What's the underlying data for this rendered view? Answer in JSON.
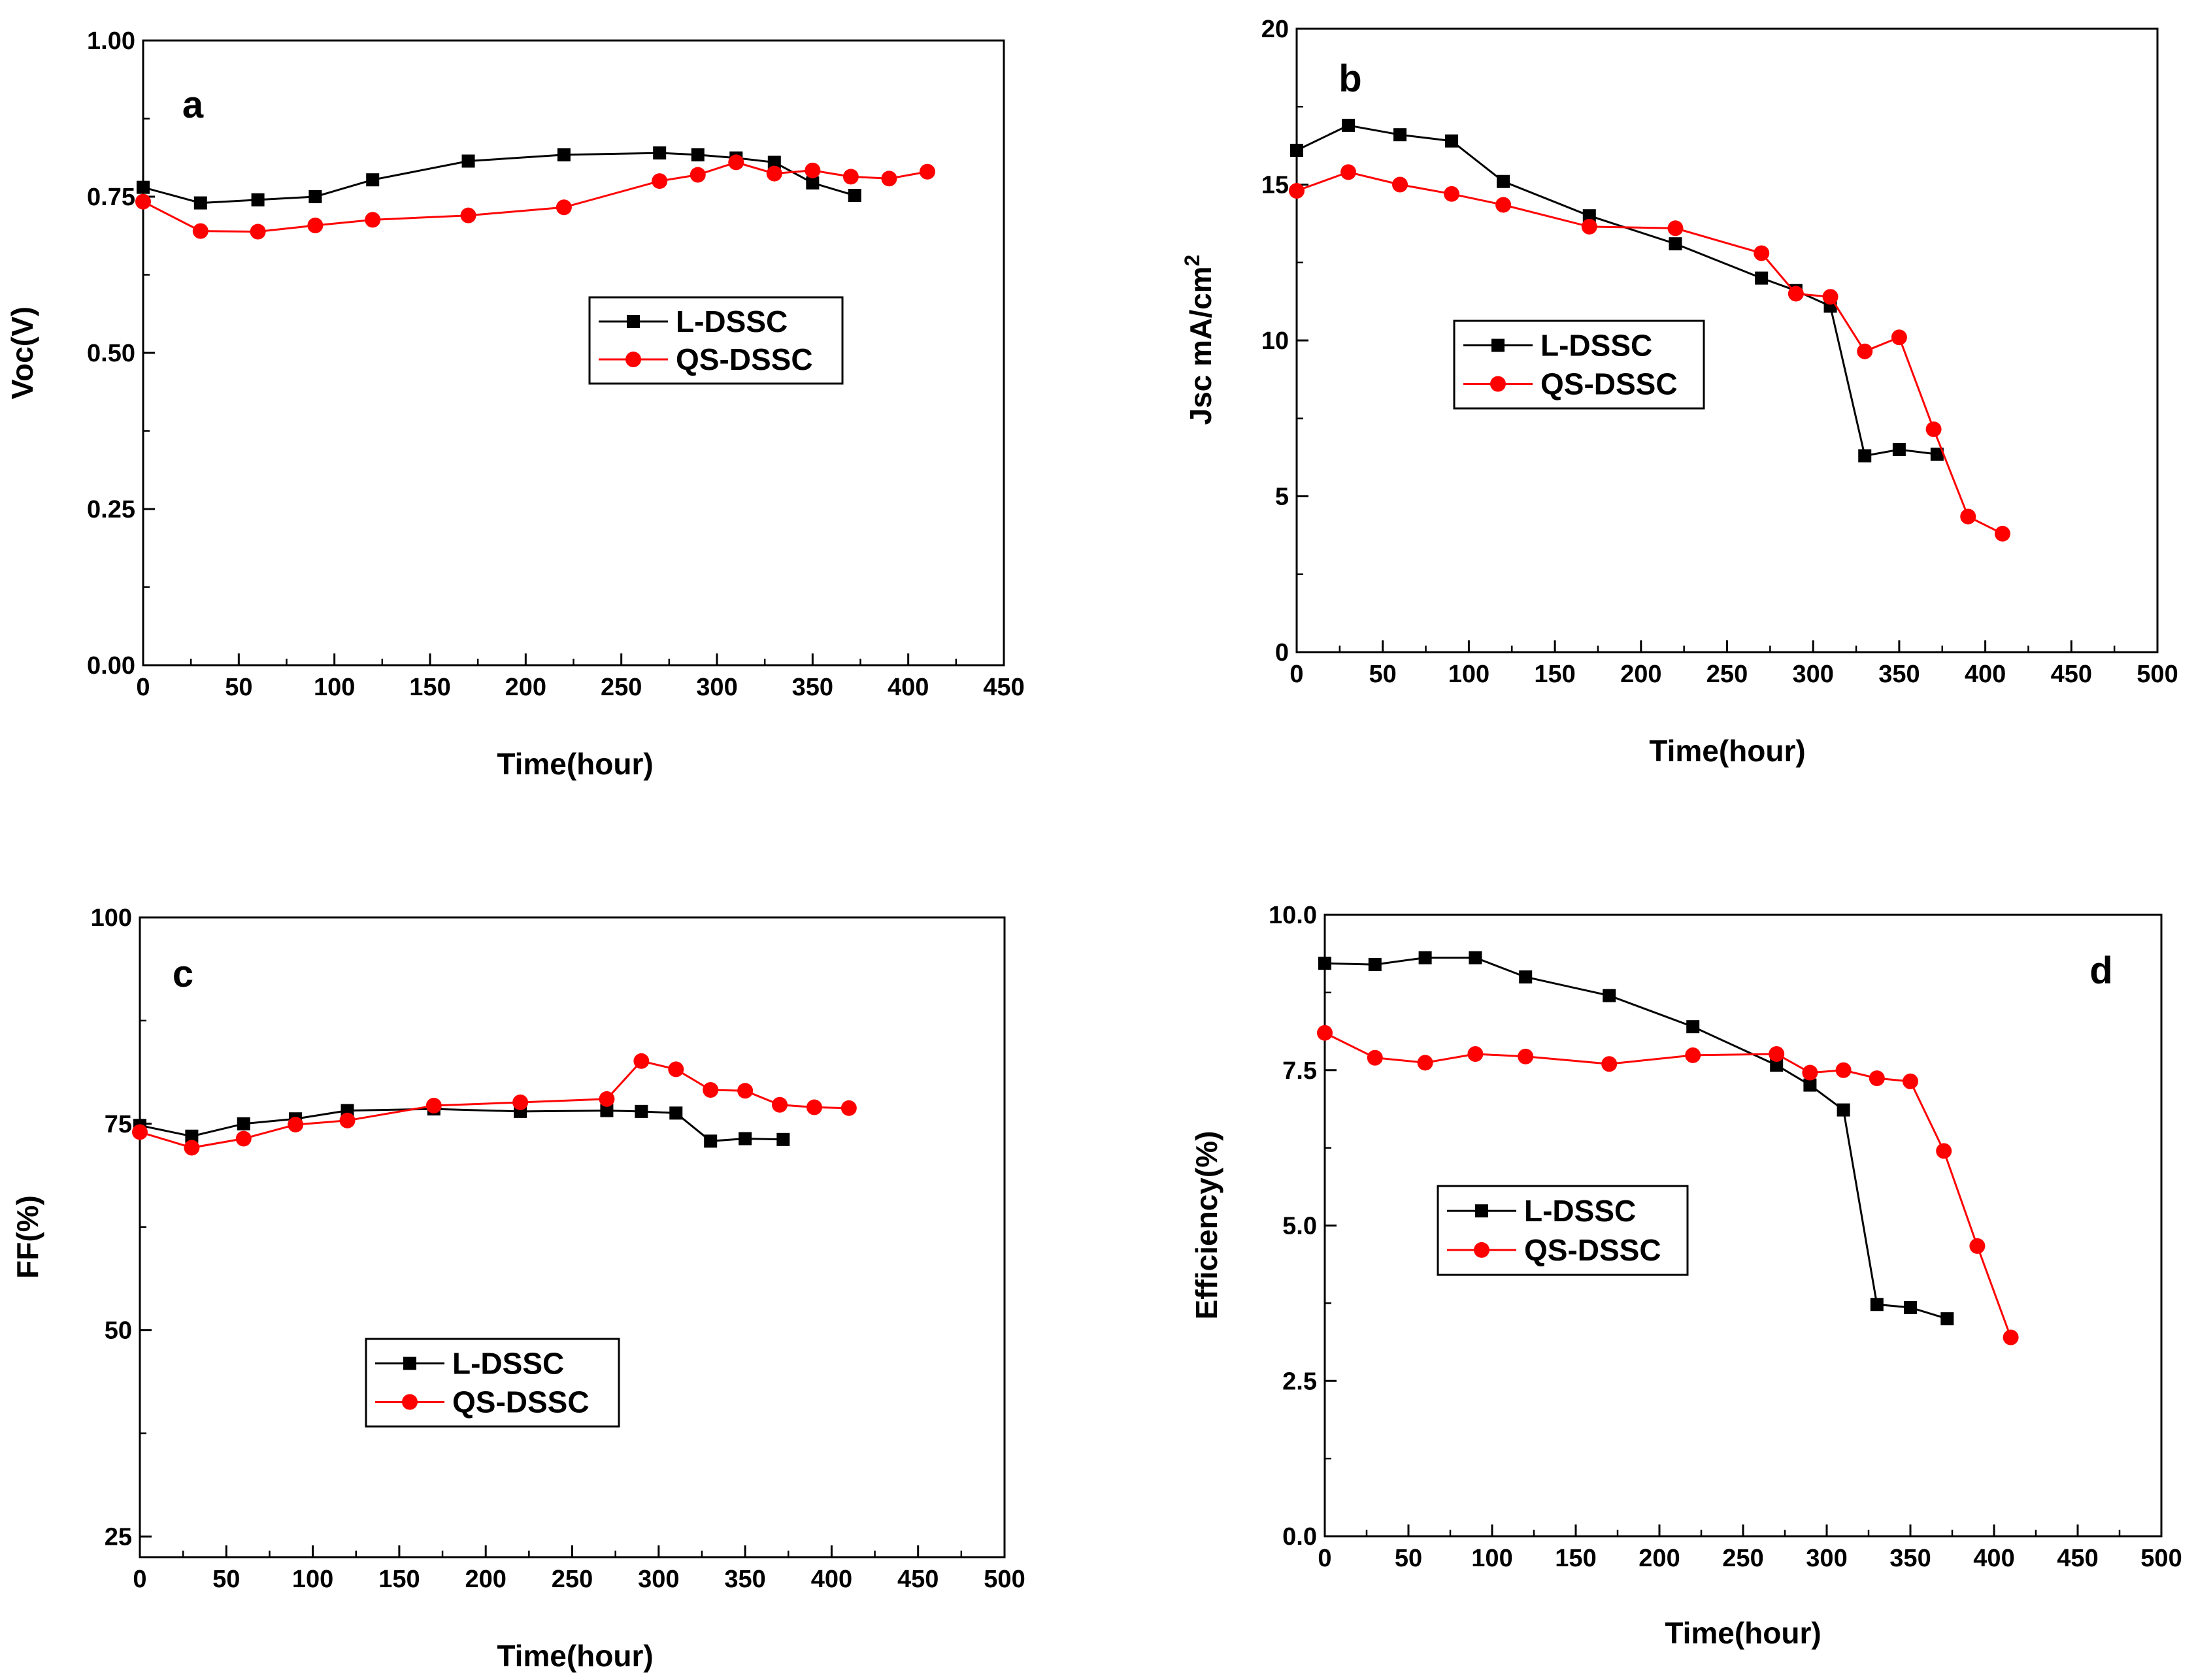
{
  "colors": {
    "l_dssc": "#000000",
    "qs_dssc": "#ff0000",
    "axis": "#000000"
  },
  "chart_data": [
    {
      "type": "line",
      "panel": "a",
      "xlabel": "Time(hour)",
      "ylabel": "Voc(V)",
      "xlim": [
        0,
        450
      ],
      "ylim": [
        0,
        1.0
      ],
      "xticks": [
        0,
        50,
        100,
        150,
        200,
        250,
        300,
        350,
        400,
        450
      ],
      "xtick_labels": [
        "0",
        "50",
        "100",
        "150",
        "200",
        "250",
        "300",
        "350",
        "400",
        "450"
      ],
      "yticks": [
        0,
        0.25,
        0.5,
        0.75,
        1.0
      ],
      "ytick_labels": [
        "0.00",
        "0.25",
        "0.50",
        "0.75",
        "1.00"
      ],
      "legend": [
        "L-DSSC",
        "QS-DSSC"
      ],
      "legend_position": "center-right",
      "series": [
        {
          "name": "L-DSSC",
          "color": "#000000",
          "marker": "square",
          "x": [
            0,
            30,
            60,
            90,
            120,
            170,
            220,
            270,
            290,
            310,
            330,
            350,
            372
          ],
          "y": [
            0.765,
            0.74,
            0.745,
            0.75,
            0.777,
            0.807,
            0.817,
            0.82,
            0.817,
            0.812,
            0.805,
            0.772,
            0.752
          ]
        },
        {
          "name": "QS-DSSC",
          "color": "#ff0000",
          "marker": "circle",
          "x": [
            0,
            30,
            60,
            90,
            120,
            170,
            220,
            270,
            290,
            310,
            330,
            350,
            370,
            390,
            410
          ],
          "y": [
            0.742,
            0.695,
            0.694,
            0.704,
            0.713,
            0.72,
            0.733,
            0.775,
            0.785,
            0.805,
            0.787,
            0.792,
            0.782,
            0.779,
            0.79
          ]
        }
      ]
    },
    {
      "type": "line",
      "panel": "b",
      "xlabel": "Time(hour)",
      "ylabel": "Jsc mA/cm",
      "ylabel_sup": "2",
      "xlim": [
        0,
        500
      ],
      "ylim": [
        0,
        20
      ],
      "xticks": [
        0,
        50,
        100,
        150,
        200,
        250,
        300,
        350,
        400,
        450,
        500
      ],
      "xtick_labels": [
        "0",
        "50",
        "100",
        "150",
        "200",
        "250",
        "300",
        "350",
        "400",
        "450",
        "500"
      ],
      "yticks": [
        0,
        5,
        10,
        15,
        20
      ],
      "ytick_labels": [
        "0",
        "5",
        "10",
        "15",
        "20"
      ],
      "legend": [
        "L-DSSC",
        "QS-DSSC"
      ],
      "legend_position": "center-left",
      "series": [
        {
          "name": "L-DSSC",
          "color": "#000000",
          "marker": "square",
          "x": [
            0,
            30,
            60,
            90,
            120,
            170,
            220,
            270,
            290,
            310,
            330,
            350,
            372
          ],
          "y": [
            16.1,
            16.9,
            16.6,
            16.4,
            15.1,
            14.0,
            13.1,
            12.0,
            11.6,
            11.1,
            6.3,
            6.5,
            6.35
          ]
        },
        {
          "name": "QS-DSSC",
          "color": "#ff0000",
          "marker": "circle",
          "x": [
            0,
            30,
            60,
            90,
            120,
            170,
            220,
            270,
            290,
            310,
            330,
            350,
            370,
            390,
            410
          ],
          "y": [
            14.8,
            15.4,
            15.0,
            14.7,
            14.35,
            13.65,
            13.6,
            12.8,
            11.5,
            11.4,
            9.65,
            10.1,
            7.15,
            4.35,
            3.8
          ]
        }
      ]
    },
    {
      "type": "line",
      "panel": "c",
      "xlabel": "Time(hour)",
      "ylabel": "FF(%)",
      "xlim": [
        0,
        500
      ],
      "ylim": [
        22.5,
        100
      ],
      "xticks": [
        0,
        50,
        100,
        150,
        200,
        250,
        300,
        350,
        400,
        450,
        500
      ],
      "xtick_labels": [
        "0",
        "50",
        "100",
        "150",
        "200",
        "250",
        "300",
        "350",
        "400",
        "450",
        "500"
      ],
      "yticks": [
        25,
        50,
        75,
        100
      ],
      "ytick_labels": [
        "25",
        "50",
        "75",
        "100"
      ],
      "legend": [
        "L-DSSC",
        "QS-DSSC"
      ],
      "legend_position": "center",
      "series": [
        {
          "name": "L-DSSC",
          "color": "#000000",
          "marker": "square",
          "x": [
            0,
            30,
            60,
            90,
            120,
            170,
            220,
            270,
            290,
            310,
            330,
            350,
            372
          ],
          "y": [
            74.8,
            73.5,
            75.0,
            75.6,
            76.6,
            76.8,
            76.5,
            76.6,
            76.5,
            76.3,
            72.9,
            73.2,
            73.1
          ]
        },
        {
          "name": "QS-DSSC",
          "color": "#ff0000",
          "marker": "circle",
          "x": [
            0,
            30,
            60,
            90,
            120,
            170,
            220,
            270,
            290,
            310,
            330,
            350,
            370,
            390,
            410
          ],
          "y": [
            74.0,
            72.1,
            73.2,
            74.9,
            75.4,
            77.2,
            77.6,
            78.0,
            82.6,
            81.6,
            79.1,
            79.0,
            77.3,
            77.0,
            76.9
          ]
        }
      ]
    },
    {
      "type": "line",
      "panel": "d",
      "xlabel": "Time(hour)",
      "ylabel": "Efficiency(%)",
      "xlim": [
        0,
        500
      ],
      "ylim": [
        0,
        10.0
      ],
      "xticks": [
        0,
        50,
        100,
        150,
        200,
        250,
        300,
        350,
        400,
        450,
        500
      ],
      "xtick_labels": [
        "0",
        "50",
        "100",
        "150",
        "200",
        "250",
        "300",
        "350",
        "400",
        "450",
        "500"
      ],
      "yticks": [
        0,
        2.5,
        5.0,
        7.5,
        10.0
      ],
      "ytick_labels": [
        "0.0",
        "2.5",
        "5.0",
        "7.5",
        "10.0"
      ],
      "legend": [
        "L-DSSC",
        "QS-DSSC"
      ],
      "legend_position": "center-left",
      "series": [
        {
          "name": "L-DSSC",
          "color": "#000000",
          "marker": "square",
          "x": [
            0,
            30,
            60,
            90,
            120,
            170,
            220,
            270,
            290,
            310,
            330,
            350,
            372
          ],
          "y": [
            9.22,
            9.2,
            9.31,
            9.31,
            9.0,
            8.7,
            8.2,
            7.58,
            7.26,
            6.86,
            3.73,
            3.68,
            3.5
          ]
        },
        {
          "name": "QS-DSSC",
          "color": "#ff0000",
          "marker": "circle",
          "x": [
            0,
            30,
            60,
            90,
            120,
            170,
            220,
            270,
            290,
            310,
            330,
            350,
            370,
            390,
            410
          ],
          "y": [
            8.1,
            7.7,
            7.62,
            7.76,
            7.72,
            7.6,
            7.74,
            7.76,
            7.46,
            7.5,
            7.37,
            7.32,
            6.2,
            4.67,
            3.2
          ]
        }
      ]
    }
  ]
}
